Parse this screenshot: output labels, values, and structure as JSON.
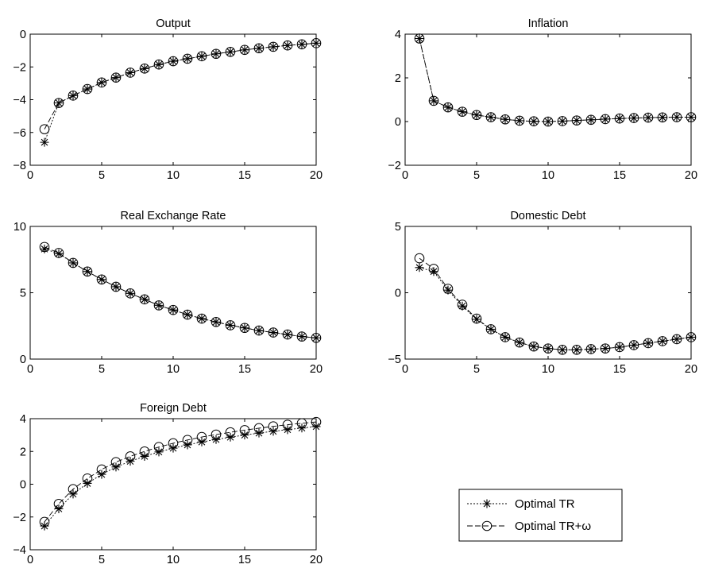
{
  "chart_data": [
    {
      "type": "line",
      "title": "Output",
      "xlim": [
        0,
        20
      ],
      "ylim": [
        -8,
        0
      ],
      "xticks": [
        0,
        5,
        10,
        15,
        20
      ],
      "yticks": [
        -8,
        -6,
        -4,
        -2,
        0
      ],
      "x": [
        1,
        2,
        3,
        4,
        5,
        6,
        7,
        8,
        9,
        10,
        11,
        12,
        13,
        14,
        15,
        16,
        17,
        18,
        19,
        20
      ],
      "series": [
        {
          "name": "Optimal TR",
          "marker": "star",
          "values": [
            -6.6,
            -4.2,
            -3.75,
            -3.35,
            -2.95,
            -2.65,
            -2.35,
            -2.1,
            -1.85,
            -1.65,
            -1.5,
            -1.35,
            -1.2,
            -1.08,
            -0.96,
            -0.86,
            -0.77,
            -0.69,
            -0.62,
            -0.55
          ]
        },
        {
          "name": "Optimal TR+ω",
          "marker": "circle",
          "values": [
            -5.8,
            -4.2,
            -3.75,
            -3.35,
            -2.95,
            -2.65,
            -2.35,
            -2.1,
            -1.85,
            -1.65,
            -1.5,
            -1.35,
            -1.2,
            -1.08,
            -0.96,
            -0.86,
            -0.77,
            -0.69,
            -0.62,
            -0.55
          ]
        }
      ]
    },
    {
      "type": "line",
      "title": "Inflation",
      "xlim": [
        0,
        20
      ],
      "ylim": [
        -2,
        4
      ],
      "xticks": [
        0,
        5,
        10,
        15,
        20
      ],
      "yticks": [
        -2,
        0,
        2,
        4
      ],
      "x": [
        1,
        2,
        3,
        4,
        5,
        6,
        7,
        8,
        9,
        10,
        11,
        12,
        13,
        14,
        15,
        16,
        17,
        18,
        19,
        20
      ],
      "series": [
        {
          "name": "Optimal TR",
          "marker": "star",
          "values": [
            3.8,
            0.95,
            0.65,
            0.45,
            0.3,
            0.2,
            0.1,
            0.04,
            0.01,
            0.0,
            0.02,
            0.05,
            0.08,
            0.11,
            0.14,
            0.16,
            0.18,
            0.19,
            0.2,
            0.2
          ]
        },
        {
          "name": "Optimal TR+ω",
          "marker": "circle",
          "values": [
            3.8,
            0.95,
            0.65,
            0.45,
            0.3,
            0.2,
            0.1,
            0.04,
            0.01,
            0.0,
            0.02,
            0.05,
            0.08,
            0.11,
            0.14,
            0.16,
            0.18,
            0.19,
            0.2,
            0.2
          ]
        }
      ]
    },
    {
      "type": "line",
      "title": "Real Exchange Rate",
      "xlim": [
        0,
        20
      ],
      "ylim": [
        0,
        10
      ],
      "xticks": [
        0,
        5,
        10,
        15,
        20
      ],
      "yticks": [
        0,
        5,
        10
      ],
      "x": [
        1,
        2,
        3,
        4,
        5,
        6,
        7,
        8,
        9,
        10,
        11,
        12,
        13,
        14,
        15,
        16,
        17,
        18,
        19,
        20
      ],
      "series": [
        {
          "name": "Optimal TR",
          "marker": "star",
          "values": [
            8.3,
            7.95,
            7.25,
            6.6,
            6.0,
            5.45,
            4.95,
            4.5,
            4.05,
            3.7,
            3.35,
            3.05,
            2.8,
            2.55,
            2.35,
            2.15,
            2.0,
            1.85,
            1.7,
            1.6
          ]
        },
        {
          "name": "Optimal TR+ω",
          "marker": "circle",
          "values": [
            8.45,
            8.0,
            7.25,
            6.6,
            6.0,
            5.45,
            4.95,
            4.5,
            4.05,
            3.7,
            3.35,
            3.05,
            2.8,
            2.55,
            2.35,
            2.15,
            2.0,
            1.85,
            1.7,
            1.6
          ]
        }
      ]
    },
    {
      "type": "line",
      "title": "Domestic Debt",
      "xlim": [
        0,
        20
      ],
      "ylim": [
        -5,
        5
      ],
      "xticks": [
        0,
        5,
        10,
        15,
        20
      ],
      "yticks": [
        -5,
        0,
        5
      ],
      "x": [
        1,
        2,
        3,
        4,
        5,
        6,
        7,
        8,
        9,
        10,
        11,
        12,
        13,
        14,
        15,
        16,
        17,
        18,
        19,
        20
      ],
      "series": [
        {
          "name": "Optimal TR",
          "marker": "star",
          "values": [
            1.9,
            1.6,
            0.2,
            -1.0,
            -2.0,
            -2.75,
            -3.35,
            -3.75,
            -4.05,
            -4.2,
            -4.3,
            -4.3,
            -4.25,
            -4.2,
            -4.1,
            -3.95,
            -3.8,
            -3.65,
            -3.5,
            -3.35
          ]
        },
        {
          "name": "Optimal TR+ω",
          "marker": "circle",
          "values": [
            2.6,
            1.8,
            0.3,
            -0.9,
            -1.95,
            -2.75,
            -3.35,
            -3.75,
            -4.05,
            -4.2,
            -4.3,
            -4.3,
            -4.25,
            -4.2,
            -4.1,
            -3.95,
            -3.8,
            -3.65,
            -3.5,
            -3.35
          ]
        }
      ]
    },
    {
      "type": "line",
      "title": "Foreign Debt",
      "xlim": [
        0,
        20
      ],
      "ylim": [
        -4,
        4
      ],
      "xticks": [
        0,
        5,
        10,
        15,
        20
      ],
      "yticks": [
        -4,
        -2,
        0,
        2,
        4
      ],
      "x": [
        1,
        2,
        3,
        4,
        5,
        6,
        7,
        8,
        9,
        10,
        11,
        12,
        13,
        14,
        15,
        16,
        17,
        18,
        19,
        20
      ],
      "series": [
        {
          "name": "Optimal TR",
          "marker": "star",
          "values": [
            -2.55,
            -1.5,
            -0.6,
            0.05,
            0.6,
            1.05,
            1.4,
            1.7,
            1.97,
            2.2,
            2.4,
            2.58,
            2.73,
            2.87,
            3.0,
            3.12,
            3.23,
            3.33,
            3.43,
            3.52
          ]
        },
        {
          "name": "Optimal TR+ω",
          "marker": "circle",
          "values": [
            -2.3,
            -1.2,
            -0.3,
            0.35,
            0.9,
            1.35,
            1.7,
            2.0,
            2.27,
            2.5,
            2.7,
            2.88,
            3.03,
            3.17,
            3.3,
            3.42,
            3.53,
            3.63,
            3.72,
            3.8
          ]
        }
      ]
    }
  ],
  "legend": {
    "placement": "bottom-right",
    "entries": [
      {
        "label": "Optimal TR",
        "marker": "star"
      },
      {
        "label": "Optimal TR+ω",
        "marker": "circle"
      }
    ]
  }
}
